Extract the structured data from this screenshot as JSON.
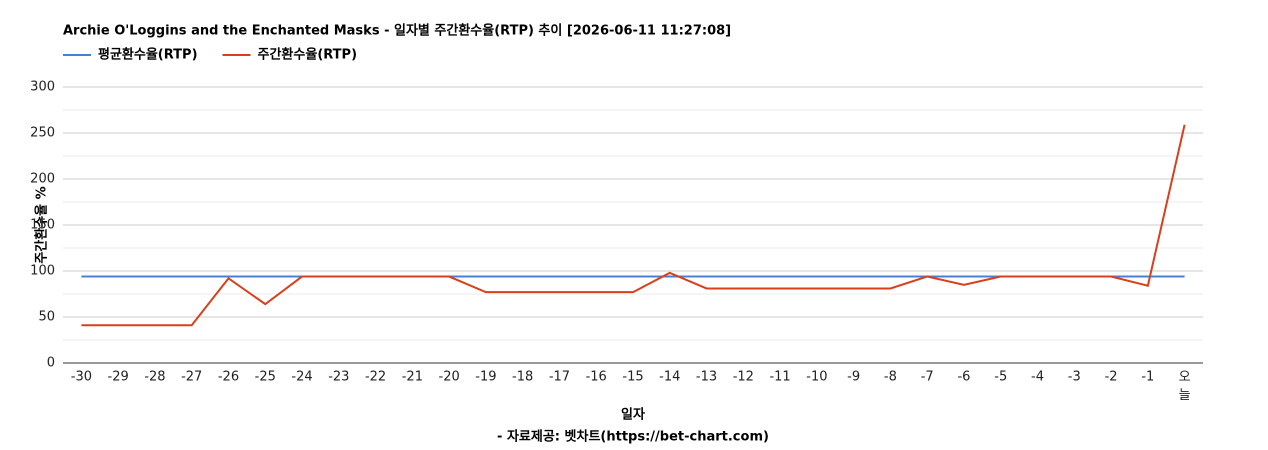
{
  "chart_data": {
    "type": "line",
    "title": "Archie O'Loggins and the Enchanted Masks - 일자별 주간환수율(RTP) 추이 [2026-06-11 11:27:08]",
    "x_label": "일자",
    "y_label": "주간환수율 %",
    "source": "- 자료제공: 벳차트(https://bet-chart.com)",
    "categories": [
      "-30",
      "-29",
      "-28",
      "-27",
      "-26",
      "-25",
      "-24",
      "-23",
      "-22",
      "-21",
      "-20",
      "-19",
      "-18",
      "-17",
      "-16",
      "-15",
      "-14",
      "-13",
      "-12",
      "-11",
      "-10",
      "-9",
      "-8",
      "-7",
      "-6",
      "-5",
      "-4",
      "-3",
      "-2",
      "-1",
      "오늘"
    ],
    "series": [
      {
        "name": "평균환수율(RTP)",
        "color": "#4a7fd6",
        "values": [
          94,
          94,
          94,
          94,
          94,
          94,
          94,
          94,
          94,
          94,
          94,
          94,
          94,
          94,
          94,
          94,
          94,
          94,
          94,
          94,
          94,
          94,
          94,
          94,
          94,
          94,
          94,
          94,
          94,
          94,
          94
        ]
      },
      {
        "name": "주간환수율(RTP)",
        "color": "#d8401b",
        "values": [
          41,
          41,
          41,
          41,
          92,
          64,
          94,
          94,
          94,
          94,
          94,
          77,
          77,
          77,
          77,
          77,
          98,
          81,
          81,
          81,
          81,
          81,
          81,
          94,
          85,
          94,
          94,
          94,
          94,
          84,
          259
        ]
      }
    ],
    "ylim": [
      0,
      300
    ],
    "yticks": [
      0,
      50,
      100,
      150,
      200,
      250,
      300
    ],
    "minor_yticks": [
      25,
      75,
      125,
      175,
      225,
      275
    ],
    "grid": true,
    "legend": "top-left"
  }
}
